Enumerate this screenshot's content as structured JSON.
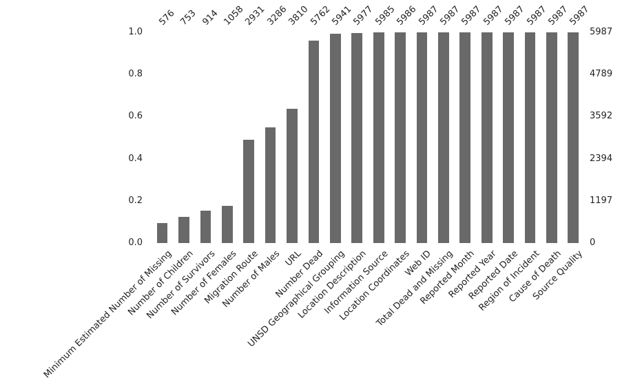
{
  "chart_data": {
    "type": "bar",
    "title": "",
    "xlabel": "",
    "ylabel": "",
    "categories": [
      "Minimum Estimated Number of Missing",
      "Number of Children",
      "Number of Survivors",
      "Number of Females",
      "Migration Route",
      "Number of Males",
      "URL",
      "Number Dead",
      "UNSD Geographical Grouping",
      "Location Description",
      "Information Source",
      "Location Coordinates",
      "Web ID",
      "Total Dead and Missing",
      "Reported Month",
      "Reported Year",
      "Reported Date",
      "Region of Incident",
      "Cause of Death",
      "Source Quality"
    ],
    "values": [
      576,
      753,
      914,
      1058,
      2931,
      3286,
      3810,
      5762,
      5941,
      5977,
      5985,
      5986,
      5987,
      5987,
      5987,
      5987,
      5987,
      5987,
      5987,
      5987
    ],
    "top_data_labels": [
      "576",
      "753",
      "914",
      "1058",
      "2931",
      "3286",
      "3810",
      "5762",
      "5941",
      "5977",
      "5985",
      "5986",
      "5987",
      "5987",
      "5987",
      "5987",
      "5987",
      "5987",
      "5987",
      "5987"
    ],
    "total_rows": 5987,
    "left_axis": {
      "ticks": [
        "0.0",
        "0.2",
        "0.4",
        "0.6",
        "0.8",
        "1.0"
      ],
      "range": [
        0.0,
        1.0
      ]
    },
    "right_axis": {
      "ticks": [
        "0",
        "1197",
        "2394",
        "3592",
        "4789",
        "5987"
      ],
      "range": [
        0,
        5987
      ]
    },
    "ylim": [
      0,
      1
    ],
    "grid": false,
    "legend": "none",
    "bar_color": "#696969",
    "text_color": "#222222",
    "background_color": "#ffffff"
  }
}
